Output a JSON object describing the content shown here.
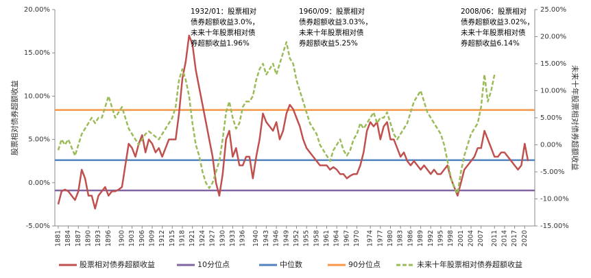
{
  "chart_data": {
    "type": "line",
    "y_axis_label": "股票相对债券超额收益",
    "y2_axis_label": "未来十年股票相对债券超额收益",
    "annotations": [
      [
        "1932/01：股票相对",
        "债券超额收益3.0%，",
        "未来十年股票相对债",
        "券超额收益1.96%"
      ],
      [
        "1960/09：股票相对",
        "债券超额收益3.03%，",
        "未来十年股票相对债",
        "券超额收益5.25%"
      ],
      [
        "2008/06：股票相对",
        "债券超额收益3.02%，",
        "未来十年股票相对债",
        "券超额收益6.14%"
      ]
    ],
    "xlim": [
      1880,
      2023
    ],
    "xticks": [
      1881,
      1884,
      1887,
      1890,
      1893,
      1896,
      1900,
      1903,
      1906,
      1909,
      1912,
      1915,
      1918,
      1921,
      1924,
      1927,
      1930,
      1933,
      1936,
      1940,
      1943,
      1946,
      1949,
      1952,
      1955,
      1958,
      1961,
      1964,
      1967,
      1970,
      1974,
      1977,
      1980,
      1983,
      1986,
      1989,
      1992,
      1995,
      1998,
      2001,
      2004,
      2007,
      2011,
      2014,
      2017,
      2020
    ],
    "ylim": [
      -5,
      20
    ],
    "yticks": [
      {
        "value": -5,
        "label": "-5.00%"
      },
      {
        "value": 0,
        "label": "0.00%"
      },
      {
        "value": 5,
        "label": "5.00%"
      },
      {
        "value": 10,
        "label": "10.00%"
      },
      {
        "value": 15,
        "label": "15.00%"
      },
      {
        "value": 20,
        "label": "20.00%"
      }
    ],
    "y2lim": [
      -15,
      25
    ],
    "y2ticks": [
      {
        "value": -15,
        "label": "-15.00%"
      },
      {
        "value": -10,
        "label": "-10.00%"
      },
      {
        "value": -5,
        "label": "-5.00%"
      },
      {
        "value": 0,
        "label": "0.00%"
      },
      {
        "value": 5,
        "label": "5.00%"
      },
      {
        "value": 10,
        "label": "10.00%"
      },
      {
        "value": 15,
        "label": "15.00%"
      },
      {
        "value": 20,
        "label": "20.00%"
      },
      {
        "value": 25,
        "label": "25.00%"
      }
    ],
    "x": [
      1881,
      1882,
      1883,
      1884,
      1885,
      1886,
      1887,
      1888,
      1889,
      1890,
      1891,
      1892,
      1893,
      1894,
      1895,
      1896,
      1897,
      1898,
      1899,
      1900,
      1901,
      1902,
      1903,
      1904,
      1905,
      1906,
      1907,
      1908,
      1909,
      1910,
      1911,
      1912,
      1913,
      1914,
      1915,
      1916,
      1917,
      1918,
      1919,
      1920,
      1921,
      1922,
      1923,
      1924,
      1925,
      1926,
      1927,
      1928,
      1929,
      1930,
      1931,
      1932,
      1933,
      1934,
      1935,
      1936,
      1937,
      1938,
      1939,
      1940,
      1941,
      1942,
      1943,
      1944,
      1945,
      1946,
      1947,
      1948,
      1949,
      1950,
      1951,
      1952,
      1953,
      1954,
      1955,
      1956,
      1957,
      1958,
      1959,
      1960,
      1961,
      1962,
      1963,
      1964,
      1965,
      1966,
      1967,
      1968,
      1969,
      1970,
      1971,
      1972,
      1973,
      1974,
      1975,
      1976,
      1977,
      1978,
      1979,
      1980,
      1981,
      1982,
      1983,
      1984,
      1985,
      1986,
      1987,
      1988,
      1989,
      1990,
      1991,
      1992,
      1993,
      1994,
      1995,
      1996,
      1997,
      1998,
      1999,
      2000,
      2001,
      2002,
      2003,
      2004,
      2005,
      2006,
      2007,
      2008,
      2009,
      2010,
      2011,
      2012,
      2013,
      2014,
      2015,
      2016,
      2017,
      2018,
      2019,
      2020,
      2021
    ],
    "series": [
      {
        "name": "股票相对债券超额收益",
        "color": "#c0504d",
        "dashed": false,
        "values": [
          -2.5,
          -1,
          -0.8,
          -1,
          -1.5,
          -2,
          -1,
          1.5,
          0.5,
          -1.5,
          -1.5,
          -3,
          -1.5,
          -1,
          -0.5,
          -1.5,
          -1,
          -1,
          -0.8,
          -0.5,
          2,
          4.5,
          4,
          3,
          4.5,
          5.5,
          3.5,
          5,
          4.5,
          3.5,
          4,
          3,
          4,
          5,
          5,
          5,
          8,
          12,
          14,
          17,
          16,
          13,
          11,
          9,
          7,
          5,
          3,
          0,
          -1.5,
          1,
          5,
          6,
          3,
          4,
          2,
          2,
          3,
          3,
          0.5,
          3,
          5,
          8,
          7,
          6.5,
          6,
          7,
          5,
          6,
          8,
          9,
          8.5,
          7.5,
          6.5,
          5,
          4,
          3.5,
          3,
          2.5,
          2,
          2,
          2,
          1.5,
          1.8,
          1.5,
          1,
          1,
          0.5,
          0.8,
          1,
          1,
          2,
          3.5,
          6,
          7,
          6.5,
          7,
          5,
          6.5,
          7,
          5,
          5,
          4,
          3,
          3.5,
          2.5,
          2,
          2.5,
          2,
          1.5,
          2,
          1.5,
          1,
          1.5,
          1,
          1,
          1.5,
          2,
          0.5,
          -0.5,
          -1.5,
          0,
          1.5,
          2,
          2.5,
          3,
          4,
          4,
          6,
          5,
          4,
          3,
          3,
          3.5,
          3.5,
          3,
          2.5,
          2,
          1.5,
          2,
          4.5,
          2.5
        ]
      },
      {
        "name": "未来十年股票相对债券超额收益",
        "color": "#9bbb59",
        "dashed": true,
        "axis": "y2",
        "values": [
          -1,
          1,
          0,
          1,
          -0.5,
          -2,
          0,
          2,
          3,
          4,
          5,
          4,
          5,
          5,
          7,
          9,
          7,
          5,
          6,
          7,
          5,
          3,
          2,
          1,
          0,
          1,
          2,
          2.5,
          2,
          1.5,
          1,
          2,
          3,
          4,
          5,
          7,
          12,
          14,
          12,
          9,
          4,
          0,
          -2,
          -5,
          -7,
          -8,
          -7,
          -5,
          -3,
          1,
          6,
          8,
          5,
          3,
          4,
          7,
          8,
          8,
          9,
          12,
          14,
          15,
          13,
          14,
          15,
          13,
          15,
          17,
          19,
          16,
          15,
          12,
          10,
          8,
          6,
          4,
          3,
          2,
          0,
          -1,
          -2,
          -3,
          -1,
          0,
          1,
          -1,
          -2,
          -1,
          1,
          2,
          4,
          3,
          4,
          5,
          6,
          4,
          5,
          5,
          6,
          4,
          2,
          1,
          2,
          3,
          4,
          6,
          8,
          9,
          10,
          8,
          6,
          5,
          4,
          3,
          2,
          0,
          -3,
          -6,
          -8,
          -9,
          -5,
          -2,
          0,
          2,
          3,
          4,
          7,
          13,
          8,
          10,
          13,
          null,
          null,
          null,
          null,
          null,
          null,
          null,
          null,
          null,
          null
        ]
      }
    ],
    "reference_lines": [
      {
        "name": "10分位点",
        "color": "#8064a2",
        "value": -0.9
      },
      {
        "name": "中位数",
        "color": "#4f81bd",
        "value": 2.6
      },
      {
        "name": "90分位点",
        "color": "#f79646",
        "value": 8.4
      }
    ]
  }
}
